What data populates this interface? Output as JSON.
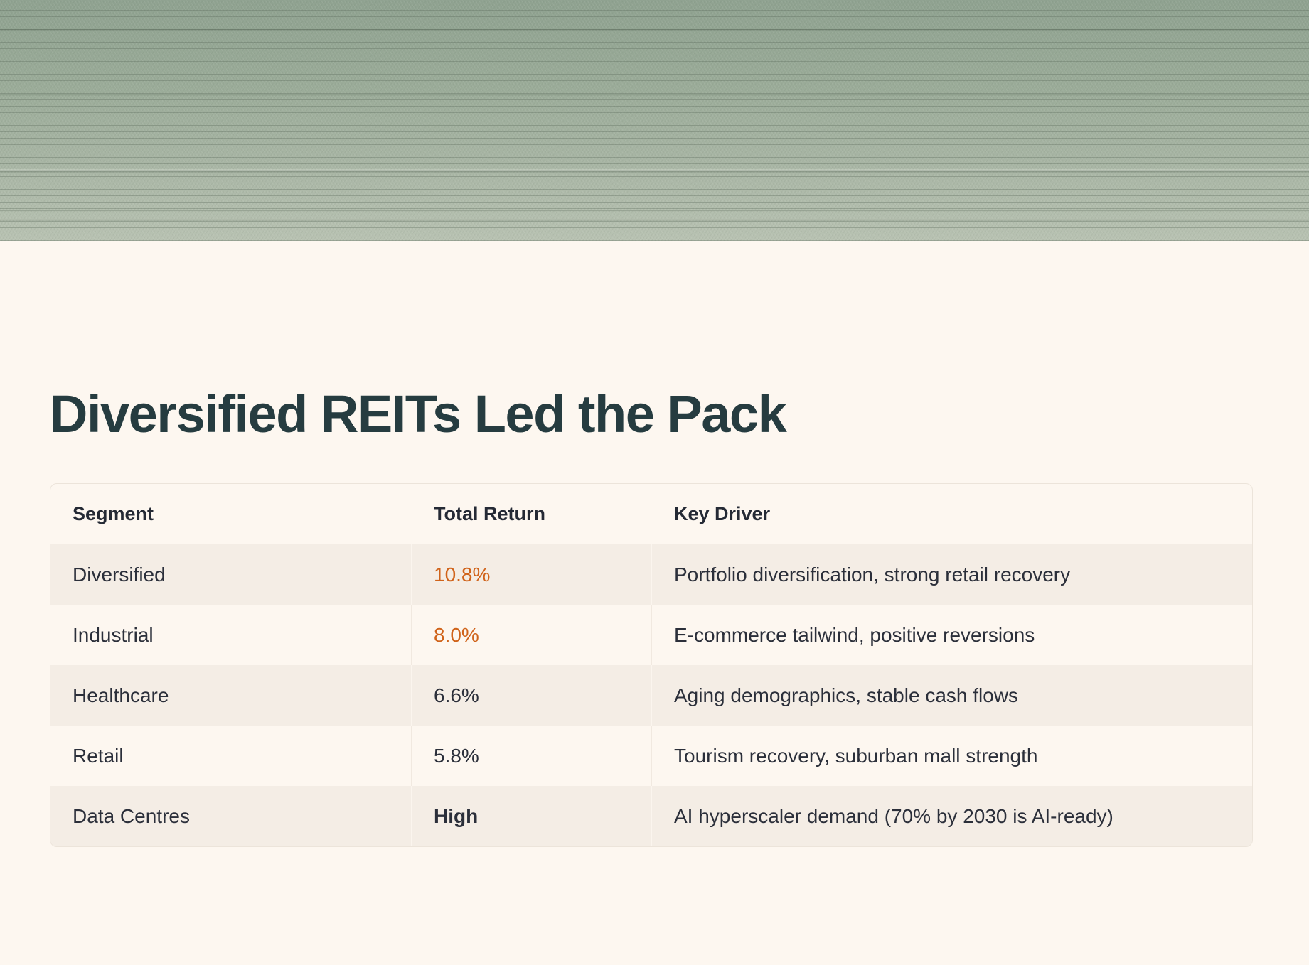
{
  "title": "Diversified REITs Led the Pack",
  "table": {
    "headers": [
      "Segment",
      "Total Return",
      "Key Driver"
    ],
    "rows": [
      {
        "segment": "Diversified",
        "total_return": "10.8%",
        "key_driver": "Portfolio diversification, strong retail recovery"
      },
      {
        "segment": "Industrial",
        "total_return": "8.0%",
        "key_driver": "E-commerce tailwind, positive reversions"
      },
      {
        "segment": "Healthcare",
        "total_return": "6.6%",
        "key_driver": "Aging demographics, stable cash flows"
      },
      {
        "segment": "Retail",
        "total_return": "5.8%",
        "key_driver": "Tourism recovery, suburban mall strength"
      },
      {
        "segment": "Data Centres",
        "total_return": "High",
        "key_driver": "AI hyperscaler demand (70% by 2030 is AI-ready)"
      }
    ]
  },
  "colors": {
    "accent": "#d0631a",
    "heading": "#263c40",
    "background": "#fdf7f0"
  }
}
